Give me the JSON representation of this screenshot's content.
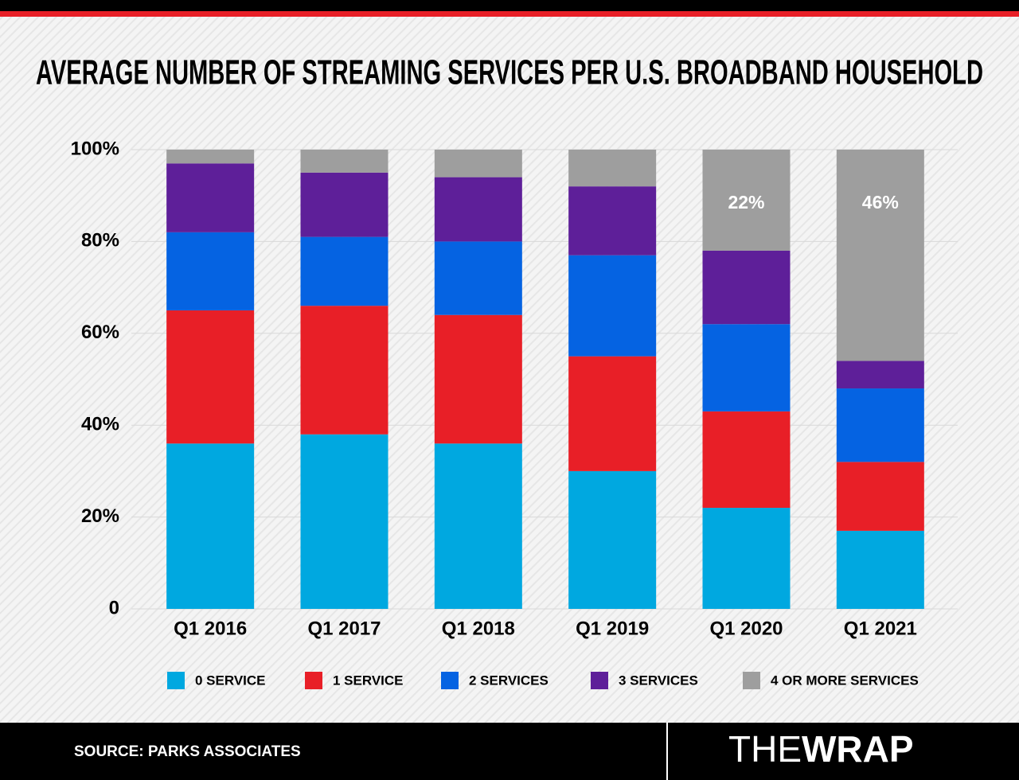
{
  "chart_data": {
    "type": "stacked-bar",
    "title": "AVERAGE NUMBER OF STREAMING SERVICES PER U.S. BROADBAND HOUSEHOLD",
    "categories": [
      "Q1 2016",
      "Q1 2017",
      "Q1 2018",
      "Q1 2019",
      "Q1 2020",
      "Q1 2021"
    ],
    "series": [
      {
        "name": "0 SERVICE",
        "color": "#00a8e0",
        "values": [
          36,
          38,
          36,
          30,
          22,
          17
        ]
      },
      {
        "name": "1 SERVICE",
        "color": "#e81f27",
        "values": [
          29,
          28,
          28,
          25,
          21,
          15
        ]
      },
      {
        "name": "2 SERVICES",
        "color": "#0563e2",
        "values": [
          17,
          15,
          16,
          22,
          19,
          16
        ]
      },
      {
        "name": "3 SERVICES",
        "color": "#5e1f99",
        "values": [
          15,
          14,
          14,
          15,
          16,
          6
        ]
      },
      {
        "name": "4 OR MORE SERVICES",
        "color": "#9e9e9e",
        "values": [
          3,
          5,
          6,
          8,
          22,
          46
        ],
        "value_labels": [
          null,
          null,
          null,
          null,
          "22%",
          "46%"
        ]
      }
    ],
    "ylim": [
      0,
      100
    ],
    "yticks": [
      {
        "value": 0,
        "label": "0"
      },
      {
        "value": 20,
        "label": "20%"
      },
      {
        "value": 40,
        "label": "40%"
      },
      {
        "value": 60,
        "label": "60%"
      },
      {
        "value": 80,
        "label": "80%"
      },
      {
        "value": 100,
        "label": "100%"
      }
    ],
    "grid": true
  },
  "footer": {
    "source": "SOURCE: PARKS ASSOCIATES",
    "brand": [
      "THE",
      "WRAP"
    ]
  }
}
